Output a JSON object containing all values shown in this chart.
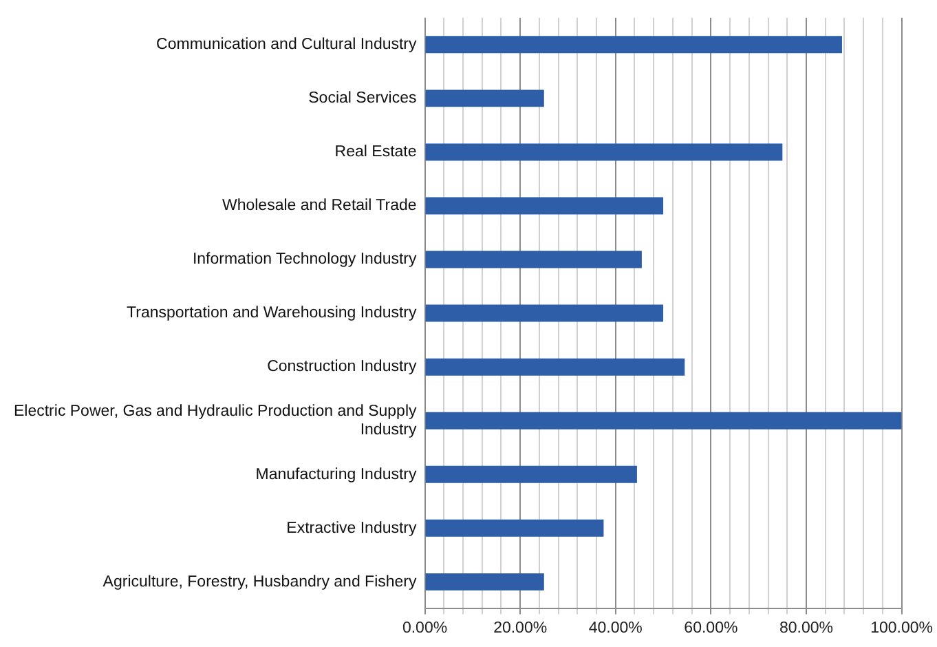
{
  "chart_data": {
    "type": "bar",
    "orientation": "horizontal",
    "categories": [
      "Communication and Cultural Industry",
      "Social Services",
      "Real Estate",
      "Wholesale and Retail Trade",
      "Information Technology Industry",
      "Transportation and Warehousing Industry",
      "Construction Industry",
      "Electric Power, Gas and Hydraulic Production and Supply Industry",
      "Manufacturing Industry",
      "Extractive Industry",
      "Agriculture, Forestry, Husbandry and Fishery"
    ],
    "values": [
      87.5,
      25,
      75,
      50,
      45.5,
      50,
      54.5,
      100,
      44.5,
      37.5,
      25
    ],
    "color": "#2e5ea8",
    "xlim": [
      0,
      100
    ],
    "xticks": [
      {
        "value": 0,
        "label": "0.00%"
      },
      {
        "value": 4,
        "label": null
      },
      {
        "value": 8,
        "label": null
      },
      {
        "value": 12,
        "label": null
      },
      {
        "value": 16,
        "label": null
      },
      {
        "value": 20,
        "label": "20.00%"
      },
      {
        "value": 24,
        "label": null
      },
      {
        "value": 28,
        "label": null
      },
      {
        "value": 32,
        "label": null
      },
      {
        "value": 36,
        "label": null
      },
      {
        "value": 40,
        "label": "40.00%"
      },
      {
        "value": 44,
        "label": null
      },
      {
        "value": 48,
        "label": null
      },
      {
        "value": 52,
        "label": null
      },
      {
        "value": 56,
        "label": null
      },
      {
        "value": 60,
        "label": "60.00%"
      },
      {
        "value": 64,
        "label": null
      },
      {
        "value": 68,
        "label": null
      },
      {
        "value": 72,
        "label": null
      },
      {
        "value": 76,
        "label": null
      },
      {
        "value": 80,
        "label": "80.00%"
      },
      {
        "value": 84,
        "label": null
      },
      {
        "value": 88,
        "label": null
      },
      {
        "value": 92,
        "label": null
      },
      {
        "value": 96,
        "label": null
      },
      {
        "value": 100,
        "label": "100.00%"
      }
    ],
    "grid": "x",
    "legend": false
  }
}
